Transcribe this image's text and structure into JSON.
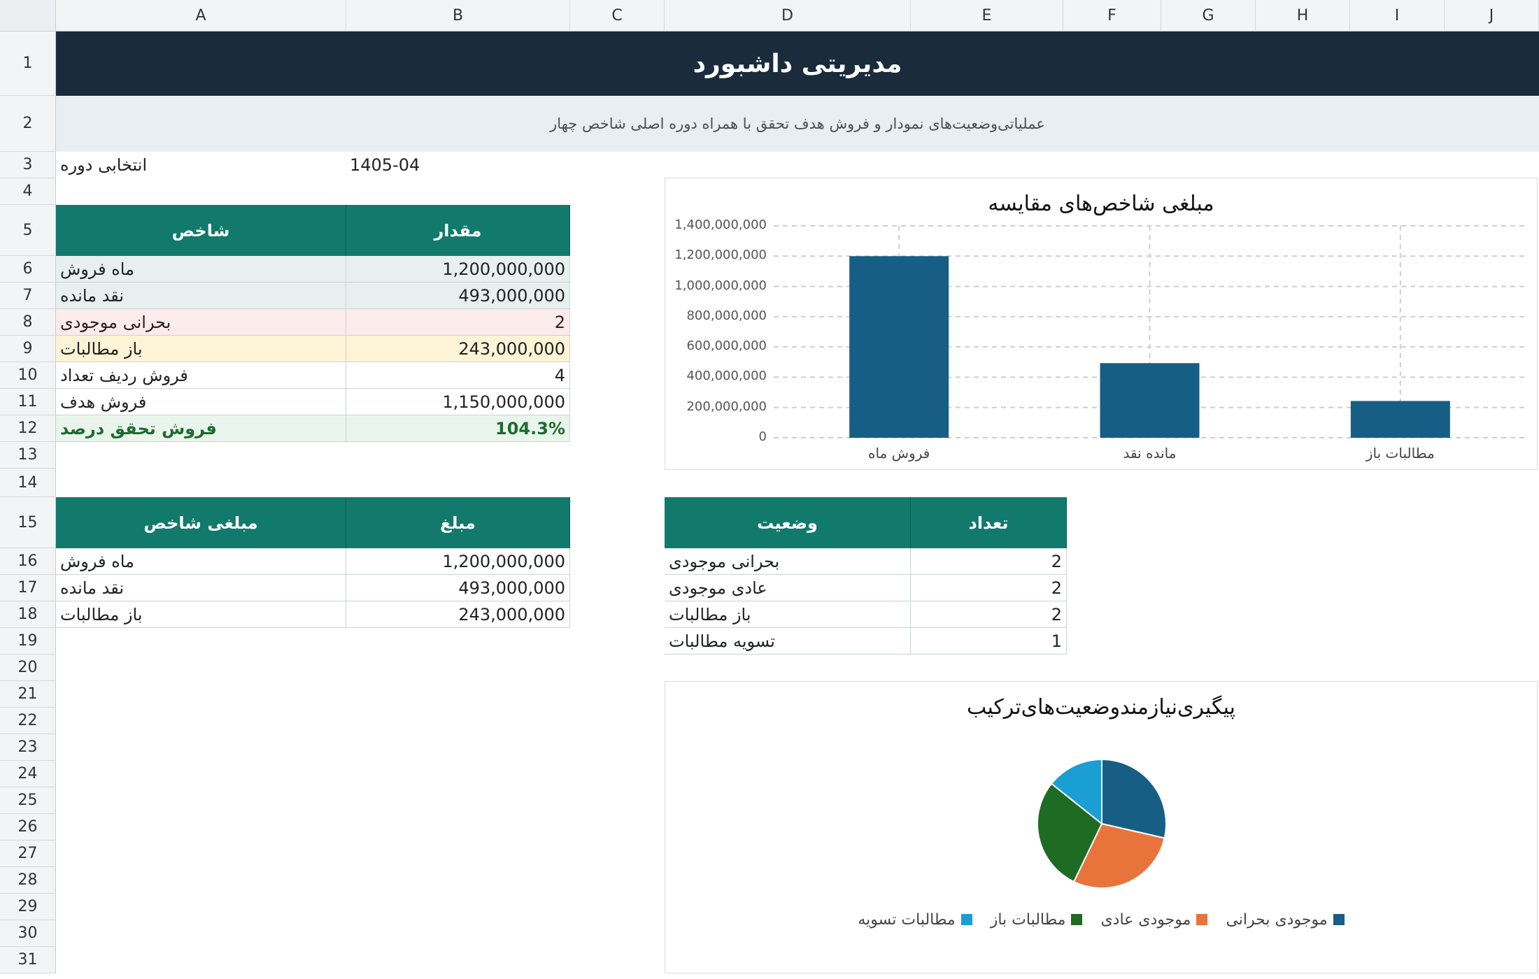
{
  "columns": [
    "A",
    "B",
    "C",
    "D",
    "E",
    "F",
    "G",
    "H",
    "I",
    "J"
  ],
  "rows": [
    "1",
    "2",
    "3",
    "4",
    "5",
    "6",
    "7",
    "8",
    "9",
    "10",
    "11",
    "12",
    "13",
    "14",
    "15",
    "16",
    "17",
    "18",
    "19",
    "20",
    "21",
    "22",
    "23",
    "24",
    "25",
    "26",
    "27",
    "28",
    "29",
    "30",
    "31"
  ],
  "title": "مدیریتی داشبورد",
  "subtitle": "عملیاتی‌وضعیت‌های نمودار و فروش هدف تحقق با همراه دوره اصلی شاخص چهار",
  "period": {
    "label": "انتخابی دوره",
    "value": "1405-04"
  },
  "kpi_table": {
    "headers": {
      "name": "شاخص",
      "value": "مقدار"
    },
    "rows": [
      {
        "name": "ماه فروش",
        "value": "1,200,000,000",
        "bg": "#e7f0ee"
      },
      {
        "name": "نقد مانده",
        "value": "493,000,000",
        "bg": "#e7f0ee"
      },
      {
        "name": "بحرانی موجودی",
        "value": "2",
        "bg": "#fcebeb"
      },
      {
        "name": "باز مطالبات",
        "value": "243,000,000",
        "bg": "#fdf3d6"
      },
      {
        "name": "فروش ردیف تعداد",
        "value": "4",
        "bg": "#ffffff"
      },
      {
        "name": "فروش هدف",
        "value": "1,150,000,000",
        "bg": "#ffffff"
      },
      {
        "name": "فروش تحقق درصد",
        "value": "104.3%",
        "bg": "#e9f5ec",
        "bold": true,
        "color": "#1e6b2e"
      }
    ]
  },
  "amount_table": {
    "headers": {
      "name": "مبلغی شاخص",
      "value": "مبلغ"
    },
    "rows": [
      {
        "name": "ماه فروش",
        "value": "1,200,000,000"
      },
      {
        "name": "نقد مانده",
        "value": "493,000,000"
      },
      {
        "name": "باز مطالبات",
        "value": "243,000,000"
      }
    ]
  },
  "status_table": {
    "headers": {
      "status": "وضعیت",
      "count": "تعداد"
    },
    "rows": [
      {
        "status": "بحرانی موجودی",
        "count": "2"
      },
      {
        "status": "عادی موجودی",
        "count": "2"
      },
      {
        "status": "باز مطالبات",
        "count": "2"
      },
      {
        "status": "تسویه مطالبات",
        "count": "1"
      }
    ]
  },
  "chart_data": [
    {
      "type": "bar",
      "title": "مبلغی شاخص‌های مقایسه",
      "categories": [
        "فروش ماه",
        "مانده نقد",
        "مطالبات باز"
      ],
      "values": [
        1200000000,
        493000000,
        243000000
      ],
      "ylim": [
        0,
        1400000000
      ],
      "yticks": [
        "1,400,000,000",
        "1,200,000,000",
        "1,000,000,000",
        "800,000,000",
        "600,000,000",
        "400,000,000",
        "200,000,000",
        "0"
      ],
      "grid": true,
      "color": "#175e84"
    },
    {
      "type": "pie",
      "title": "پیگیری‌نیازمندوضعیت‌های‌ترکیب",
      "labels": [
        "موجودی بحرانی",
        "موجودی عادی",
        "مطالبات باز",
        "مطالبات تسویه"
      ],
      "values": [
        2,
        2,
        2,
        1
      ],
      "colors": [
        "#175e84",
        "#e8743b",
        "#1e6b24",
        "#1a9fd4"
      ],
      "legend": "bottom"
    }
  ]
}
